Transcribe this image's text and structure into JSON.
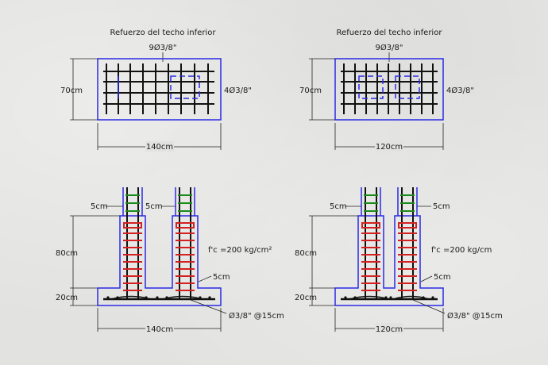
{
  "plan_left": {
    "title": "Refuerzo del techo inferior",
    "bars_top": "9Ø3/8\"",
    "bars_side": "4Ø3/8\"",
    "height_label": "70cm",
    "width_label": "140cm"
  },
  "plan_right": {
    "title": "Refuerzo del techo inferior",
    "bars_top": "9Ø3/8\"",
    "bars_side": "4Ø3/8\"",
    "height_label": "70cm",
    "width_label": "120cm"
  },
  "section_left": {
    "cover_left": "5cm",
    "cover_mid": "5cm",
    "cover_bottom": "5cm",
    "height_label": "80cm",
    "base_label": "20cm",
    "width_label": "140cm",
    "concrete": "f'c =200 kg/cm²",
    "stirrups": "Ø3/8\" @15cm"
  },
  "section_right": {
    "cover_left": "5cm",
    "cover_right": "5cm",
    "cover_bottom": "5cm",
    "height_label": "80cm",
    "base_label": "20cm",
    "width_label": "120cm",
    "concrete": "f'c =200 kg/cm",
    "stirrups": "Ø3/8\" @15cm"
  },
  "colors": {
    "outline": "#2a2ae6",
    "rebar": "#111111",
    "stirrup": "#d42020",
    "column_tie": "#1a8a1a",
    "dim_line": "#222222"
  }
}
